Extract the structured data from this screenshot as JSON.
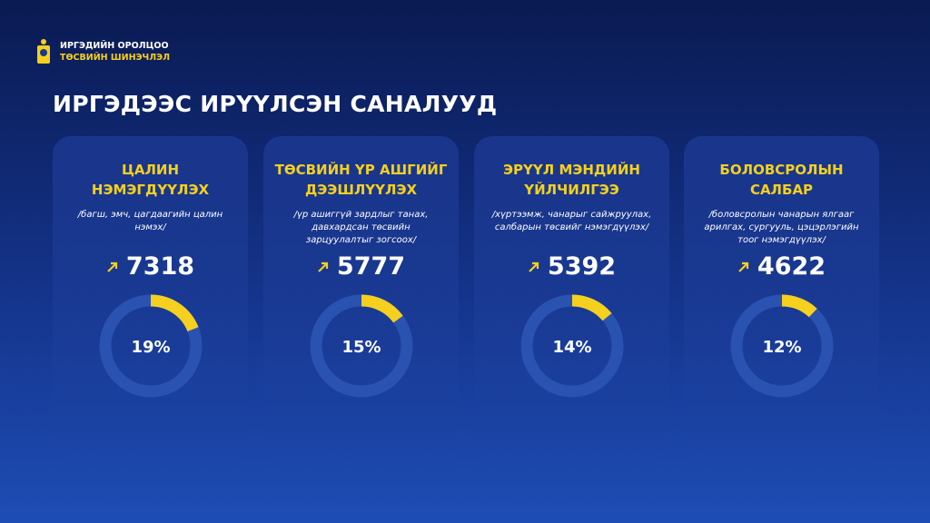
{
  "header": {
    "logo_lines": [
      "ИРГЭДИЙН ОРОЛЦОО",
      "ТӨСВИЙН ШИНЭЧЛЭЛ"
    ]
  },
  "title": "ИРГЭДЭЭС ИРҮҮЛСЭН САНАЛУУД",
  "cards": [
    {
      "title_lines": [
        "ЦАЛИН",
        "НЭМЭГДҮҮЛЭХ"
      ],
      "subtitle": "/багш, эмч, цагдаагийн цалин нэмэх/",
      "count": 7318,
      "percent": {
        "value": 19,
        "label": "19%"
      }
    },
    {
      "title_lines": [
        "ТӨСВИЙН ҮР АШГИЙГ",
        "ДЭЭШЛҮҮЛЭХ"
      ],
      "subtitle": "/үр ашиггүй зардлыг танах, давхардсан төсвийн зарцуулалтыг зогсоох/",
      "count": 5777,
      "percent": {
        "value": 15,
        "label": "15%"
      }
    },
    {
      "title_lines": [
        "ЭРҮҮЛ МЭНДИЙН",
        "ҮЙЛЧИЛГЭЭ"
      ],
      "subtitle": "/хүртээмж, чанарыг сайжруулах, салбарын төсвийг нэмэгдүүлэх/",
      "count": 5392,
      "percent": {
        "value": 14,
        "label": "14%"
      }
    },
    {
      "title_lines": [
        "БОЛОВСРОЛЫН",
        "САЛБАР"
      ],
      "subtitle": "/боловсролын чанарын ялгааг арилгах, сургууль, цэцэрлэгийн тоог нэмэгдүүлэх/",
      "count": 4622,
      "percent": {
        "value": 12,
        "label": "12%"
      }
    }
  ]
}
